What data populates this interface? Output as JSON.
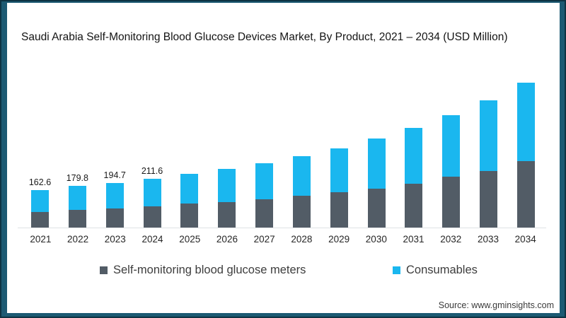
{
  "window": {
    "border_color": "#1c5a73",
    "border_edge_color": "#0e3343",
    "background": "#ffffff"
  },
  "title": "Saudi Arabia Self-Monitoring Blood Glucose Devices Market, By Product, 2021 – 2034 (USD Million)",
  "source": "Source: www.gminsights.com",
  "legend": {
    "items": [
      {
        "label": "Self-monitoring blood glucose meters",
        "color": "#525c66"
      },
      {
        "label": "Consumables",
        "color": "#1ab7ef"
      }
    ]
  },
  "chart_data": {
    "type": "bar",
    "stacked": true,
    "title": "Saudi Arabia Self-Monitoring Blood Glucose Devices Market, By Product, 2021 – 2034 (USD Million)",
    "unit": "USD Million",
    "categories": [
      "2021",
      "2022",
      "2023",
      "2024",
      "2025",
      "2026",
      "2027",
      "2028",
      "2029",
      "2030",
      "2031",
      "2032",
      "2033",
      "2034"
    ],
    "series": [
      {
        "name": "Self-monitoring blood glucose meters",
        "color": "#525c66",
        "values": [
          67.5,
          75.8,
          82.9,
          91.2,
          103.5,
          111.4,
          123.7,
          137.2,
          154.4,
          169.8,
          190.3,
          221.0,
          246.5,
          287.7
        ]
      },
      {
        "name": "Consumables",
        "color": "#1ab7ef",
        "values": [
          95.1,
          104.0,
          111.8,
          120.4,
          128.5,
          143.6,
          155.3,
          172.8,
          189.6,
          215.2,
          242.7,
          268.0,
          305.5,
          340.3
        ]
      }
    ],
    "totals": [
      162.6,
      179.8,
      194.7,
      211.6,
      232,
      255,
      279,
      310,
      344,
      385,
      433,
      489,
      552,
      628
    ],
    "data_labels": [
      "162.6",
      "179.8",
      "194.7",
      "211.6",
      null,
      null,
      null,
      null,
      null,
      null,
      null,
      null,
      null,
      null
    ],
    "layout": {
      "legend_position": "bottom",
      "grid": false,
      "y_axis_visible": false,
      "x_baseline_color": "#dfe2e4"
    }
  }
}
